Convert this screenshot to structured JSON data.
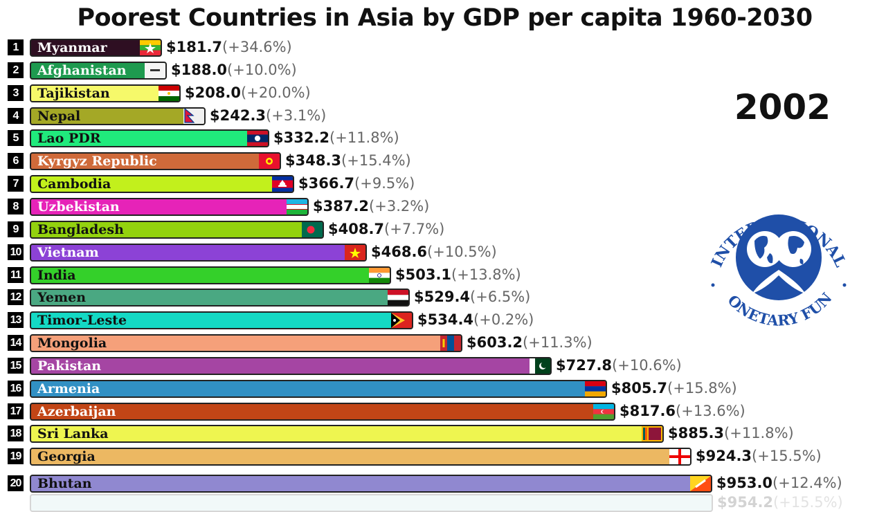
{
  "chart_data": {
    "type": "bar",
    "title": "Poorest Countries in Asia by GDP per capita 1960-2030",
    "year": "2002",
    "orientation": "horizontal",
    "series": [
      {
        "rank": "1",
        "name": "Myanmar",
        "value": 181.7,
        "value_label": "$181.7",
        "change": "(+34.6%)",
        "color": "#2e0f22",
        "text_color": "#ffffff",
        "flag": "myanmar-flag"
      },
      {
        "rank": "2",
        "name": "Afghanistan",
        "value": 188.0,
        "value_label": "$188.0",
        "change": "(+10.0%)",
        "color": "#1e9a4f",
        "text_color": "#ffffff",
        "flag": "afghanistan-flag"
      },
      {
        "rank": "3",
        "name": "Tajikistan",
        "value": 208.0,
        "value_label": "$208.0",
        "change": "(+20.0%)",
        "color": "#f6f96a",
        "text_color": "#111111",
        "flag": "tajikistan-flag"
      },
      {
        "rank": "4",
        "name": "Nepal",
        "value": 242.3,
        "value_label": "$242.3",
        "change": "(+3.1%)",
        "color": "#a4a826",
        "text_color": "#111111",
        "flag": "nepal-flag"
      },
      {
        "rank": "5",
        "name": "Lao PDR",
        "value": 332.2,
        "value_label": "$332.2",
        "change": "(+11.8%)",
        "color": "#20ea7c",
        "text_color": "#111111",
        "flag": "laos-flag"
      },
      {
        "rank": "6",
        "name": "Kyrgyz Republic",
        "value": 348.3,
        "value_label": "$348.3",
        "change": "(+15.4%)",
        "color": "#cf6a3a",
        "text_color": "#ffffff",
        "flag": "kyrgyzstan-flag"
      },
      {
        "rank": "7",
        "name": "Cambodia",
        "value": 366.7,
        "value_label": "$366.7",
        "change": "(+9.5%)",
        "color": "#c2f01c",
        "text_color": "#111111",
        "flag": "cambodia-flag"
      },
      {
        "rank": "8",
        "name": "Uzbekistan",
        "value": 387.2,
        "value_label": "$387.2",
        "change": "(+3.2%)",
        "color": "#e623b8",
        "text_color": "#ffffff",
        "flag": "uzbekistan-flag"
      },
      {
        "rank": "9",
        "name": "Bangladesh",
        "value": 408.7,
        "value_label": "$408.7",
        "change": "(+7.7%)",
        "color": "#93d20e",
        "text_color": "#111111",
        "flag": "bangladesh-flag"
      },
      {
        "rank": "10",
        "name": "Vietnam",
        "value": 468.6,
        "value_label": "$468.6",
        "change": "(+10.5%)",
        "color": "#8c42d6",
        "text_color": "#ffffff",
        "flag": "vietnam-flag"
      },
      {
        "rank": "11",
        "name": "India",
        "value": 503.1,
        "value_label": "$503.1",
        "change": "(+13.8%)",
        "color": "#34d02a",
        "text_color": "#111111",
        "flag": "india-flag"
      },
      {
        "rank": "12",
        "name": "Yemen",
        "value": 529.4,
        "value_label": "$529.4",
        "change": "(+6.5%)",
        "color": "#4aa882",
        "text_color": "#111111",
        "flag": "yemen-flag"
      },
      {
        "rank": "13",
        "name": "Timor-Leste",
        "value": 534.4,
        "value_label": "$534.4",
        "change": "(+0.2%)",
        "color": "#14d9c4",
        "text_color": "#111111",
        "flag": "timor-leste-flag"
      },
      {
        "rank": "14",
        "name": "Mongolia",
        "value": 603.2,
        "value_label": "$603.2",
        "change": "(+11.3%)",
        "color": "#f5a07a",
        "text_color": "#111111",
        "flag": "mongolia-flag"
      },
      {
        "rank": "15",
        "name": "Pakistan",
        "value": 727.8,
        "value_label": "$727.8",
        "change": "(+10.6%)",
        "color": "#a545a3",
        "text_color": "#ffffff",
        "flag": "pakistan-flag"
      },
      {
        "rank": "16",
        "name": "Armenia",
        "value": 805.7,
        "value_label": "$805.7",
        "change": "(+15.8%)",
        "color": "#3190c4",
        "text_color": "#ffffff",
        "flag": "armenia-flag"
      },
      {
        "rank": "17",
        "name": "Azerbaijan",
        "value": 817.6,
        "value_label": "$817.6",
        "change": "(+13.6%)",
        "color": "#c24516",
        "text_color": "#ffffff",
        "flag": "azerbaijan-flag"
      },
      {
        "rank": "18",
        "name": "Sri Lanka",
        "value": 885.3,
        "value_label": "$885.3",
        "change": "(+11.8%)",
        "color": "#eef550",
        "text_color": "#111111",
        "flag": "sri-lanka-flag"
      },
      {
        "rank": "19",
        "name": "Georgia",
        "value": 924.3,
        "value_label": "$924.3",
        "change": "(+15.5%)",
        "color": "#ecb862",
        "text_color": "#111111",
        "flag": "georgia-flag"
      },
      {
        "rank": "20",
        "name": "Bhutan",
        "value": 953.0,
        "value_label": "$953.0",
        "change": "(+12.4%)",
        "color": "#9088d0",
        "text_color": "#111111",
        "flag": "bhutan-flag"
      }
    ],
    "partial_next": {
      "value": 954.2,
      "value_label": "$954.2",
      "change": "(+15.5%)",
      "color": "#b8e0e0"
    }
  },
  "logo": {
    "top_text": "INTERNATIONAL",
    "bottom_text": "MONETARY FUND",
    "color": "#1f4fa8"
  }
}
